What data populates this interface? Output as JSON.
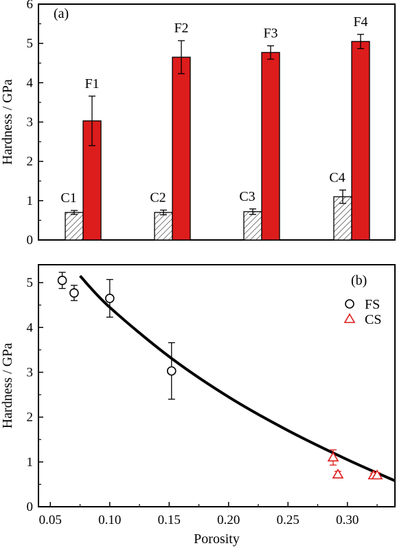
{
  "chart_data": [
    {
      "type": "bar",
      "panel_label": "(a)",
      "ylabel": "Hardness / GPa",
      "ylim": [
        0,
        6
      ],
      "yticks": [
        "0",
        "1",
        "2",
        "3",
        "4",
        "5",
        "6"
      ],
      "groups": [
        {
          "coarse_label": "C1",
          "fine_label": "F1"
        },
        {
          "coarse_label": "C2",
          "fine_label": "F2"
        },
        {
          "coarse_label": "C3",
          "fine_label": "F3"
        },
        {
          "coarse_label": "C4",
          "fine_label": "F4"
        }
      ],
      "series": [
        {
          "values": [
            0.7,
            0.7,
            0.72,
            1.1
          ],
          "errors": [
            0.05,
            0.06,
            0.07,
            0.17
          ],
          "pattern": "hatched",
          "color": "#ffffff"
        },
        {
          "values": [
            3.03,
            4.65,
            4.77,
            5.05
          ],
          "errors": [
            0.63,
            0.42,
            0.17,
            0.18
          ],
          "pattern": "solid",
          "color": "#dd1c1c"
        }
      ]
    },
    {
      "type": "scatter",
      "panel_label": "(b)",
      "xlabel": "Porosity",
      "ylabel": "Hardness / GPa",
      "xlim": [
        0.04,
        0.34
      ],
      "ylim": [
        0,
        5.4
      ],
      "xticks": [
        "0.05",
        "0.10",
        "0.15",
        "0.20",
        "0.25",
        "0.30"
      ],
      "yticks": [
        "0",
        "1",
        "2",
        "3",
        "4",
        "5"
      ],
      "legend_position": "top-right",
      "series": [
        {
          "name": "FS",
          "marker": "circle",
          "color": "#000000",
          "x": [
            0.06,
            0.07,
            0.1,
            0.152
          ],
          "y": [
            5.05,
            4.77,
            4.65,
            3.03
          ],
          "errors": [
            0.18,
            0.17,
            0.42,
            0.63
          ]
        },
        {
          "name": "CS",
          "marker": "triangle",
          "color": "#dd1c1c",
          "x": [
            0.288,
            0.292,
            0.322,
            0.325
          ],
          "y": [
            1.1,
            0.72,
            0.7,
            0.7
          ],
          "errors": [
            0.17,
            0.07,
            0.05,
            0.06
          ]
        }
      ],
      "fit": {
        "type": "curve",
        "color": "#000000",
        "x": [
          0.075,
          0.1,
          0.15,
          0.2,
          0.25,
          0.3,
          0.34
        ],
        "y": [
          5.15,
          4.45,
          3.35,
          2.45,
          1.7,
          1.05,
          0.58
        ]
      }
    }
  ]
}
